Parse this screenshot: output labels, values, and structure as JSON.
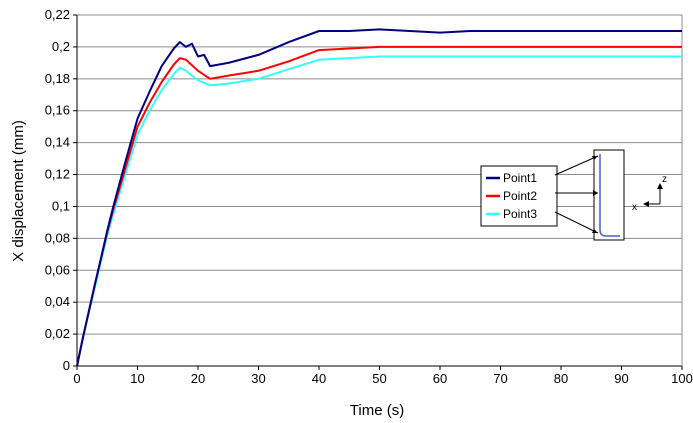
{
  "chart_data": {
    "type": "line",
    "xlabel": "Time (s)",
    "ylabel": "X displacement (mm)",
    "xlim": [
      0,
      100
    ],
    "ylim": [
      0,
      0.22
    ],
    "xticks": [
      "0",
      "10",
      "20",
      "30",
      "40",
      "50",
      "60",
      "70",
      "80",
      "90",
      "100"
    ],
    "yticks": [
      "0",
      "0,02",
      "0,04",
      "0,06",
      "0,08",
      "0,1",
      "0,12",
      "0,14",
      "0,16",
      "0,18",
      "0,2",
      "0,22"
    ],
    "grid": "horizontal",
    "legend_position": "right",
    "series": [
      {
        "name": "Point1",
        "color": "#000080",
        "x": [
          0,
          1,
          2,
          3,
          4,
          5,
          6,
          8,
          10,
          12,
          14,
          16,
          17,
          18,
          19,
          20,
          21,
          22,
          25,
          30,
          35,
          40,
          45,
          50,
          55,
          60,
          65,
          70,
          75,
          80,
          85,
          90,
          95,
          100
        ],
        "y": [
          0,
          0.018,
          0.035,
          0.052,
          0.068,
          0.085,
          0.1,
          0.128,
          0.155,
          0.172,
          0.188,
          0.199,
          0.203,
          0.2,
          0.202,
          0.194,
          0.195,
          0.188,
          0.19,
          0.195,
          0.203,
          0.21,
          0.21,
          0.211,
          0.21,
          0.209,
          0.21,
          0.21,
          0.21,
          0.21,
          0.21,
          0.21,
          0.21,
          0.21
        ]
      },
      {
        "name": "Point2",
        "color": "#ff0000",
        "x": [
          0,
          1,
          2,
          3,
          4,
          5,
          6,
          8,
          10,
          12,
          14,
          16,
          17,
          18,
          20,
          22,
          25,
          30,
          35,
          40,
          45,
          50,
          60,
          70,
          80,
          90,
          100
        ],
        "y": [
          0,
          0.018,
          0.035,
          0.052,
          0.068,
          0.084,
          0.098,
          0.124,
          0.15,
          0.165,
          0.178,
          0.189,
          0.193,
          0.192,
          0.185,
          0.18,
          0.182,
          0.185,
          0.191,
          0.198,
          0.199,
          0.2,
          0.2,
          0.2,
          0.2,
          0.2,
          0.2
        ]
      },
      {
        "name": "Point3",
        "color": "#33ffff",
        "x": [
          0,
          1,
          2,
          3,
          4,
          5,
          6,
          8,
          10,
          12,
          14,
          16,
          17,
          18,
          20,
          22,
          25,
          30,
          35,
          40,
          45,
          50,
          60,
          70,
          80,
          90,
          100
        ],
        "y": [
          0,
          0.018,
          0.034,
          0.05,
          0.066,
          0.082,
          0.095,
          0.12,
          0.145,
          0.16,
          0.173,
          0.183,
          0.187,
          0.185,
          0.179,
          0.176,
          0.177,
          0.18,
          0.186,
          0.192,
          0.193,
          0.194,
          0.194,
          0.194,
          0.194,
          0.194,
          0.194
        ]
      }
    ],
    "inset_labels": {
      "z": "z",
      "x": "x"
    }
  }
}
